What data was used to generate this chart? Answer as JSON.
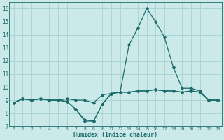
{
  "xlabel": "Humidex (Indice chaleur)",
  "bg_color": "#cce9e9",
  "grid_color": "#aad4d4",
  "line_color": "#1a6b6b",
  "xlim": [
    -0.5,
    23.5
  ],
  "ylim": [
    7,
    16.5
  ],
  "yticks": [
    7,
    8,
    9,
    10,
    11,
    12,
    13,
    14,
    15,
    16
  ],
  "xticks": [
    0,
    1,
    2,
    3,
    4,
    5,
    6,
    7,
    8,
    9,
    10,
    11,
    12,
    13,
    14,
    15,
    16,
    17,
    18,
    19,
    20,
    21,
    22,
    23
  ],
  "series": [
    [
      8.8,
      9.1,
      9.0,
      9.1,
      9.0,
      9.0,
      8.9,
      8.3,
      7.4,
      7.4,
      8.7,
      9.5,
      9.6,
      9.6,
      9.7,
      9.7,
      9.8,
      9.7,
      9.7,
      9.6,
      9.7,
      9.6,
      9.0,
      9.0
    ],
    [
      8.8,
      9.1,
      9.0,
      9.1,
      9.0,
      9.0,
      8.9,
      8.3,
      7.5,
      7.4,
      8.7,
      9.5,
      9.6,
      13.2,
      14.5,
      16.0,
      15.0,
      13.8,
      11.5,
      9.9,
      9.9,
      9.7,
      9.0,
      9.0
    ],
    [
      8.8,
      9.1,
      9.0,
      9.1,
      9.0,
      9.0,
      9.1,
      9.0,
      9.0,
      8.8,
      9.4,
      9.5,
      9.6,
      9.6,
      9.7,
      9.7,
      9.8,
      9.7,
      9.7,
      9.6,
      9.7,
      9.6,
      9.0,
      9.0
    ]
  ]
}
